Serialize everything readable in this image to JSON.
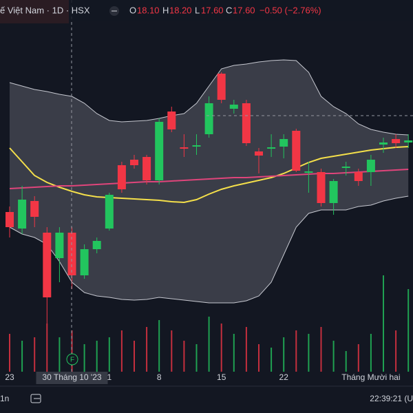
{
  "header": {
    "symbol": "ế Việt Nam · 1D · HSX",
    "o_label": "O",
    "o": "18.10",
    "h_label": "H",
    "h": "18.20",
    "l_label": "L",
    "l": "17.60",
    "c_label": "C",
    "c": "17.60",
    "change": "−0.50 (−2.76%)"
  },
  "footer": {
    "range": "1n",
    "clock": "22:39:21 (U",
    "event": "F"
  },
  "chart_data": {
    "type": "candlestick",
    "ylim": [
      14.6,
      20
    ],
    "vlim": [
      0,
      540
    ],
    "up_color": "#22c55e",
    "down_color": "#f23645",
    "highlighted_category": "30 Tháng 10 '23",
    "categories": [
      "23",
      null,
      null,
      null,
      null,
      "30 Tháng 10 '23",
      null,
      null,
      "1",
      null,
      null,
      null,
      "8",
      null,
      null,
      null,
      null,
      "15",
      null,
      null,
      null,
      null,
      "22",
      null,
      null,
      null,
      null,
      null,
      null,
      "Tháng Mười hai",
      null,
      null,
      null
    ],
    "open": [
      16.92,
      16.68,
      17.08,
      16.62,
      16.25,
      16.62,
      16.0,
      16.38,
      16.68,
      17.6,
      17.68,
      17.72,
      17.38,
      18.38,
      17.86,
      17.87,
      18.05,
      18.93,
      18.42,
      18.5,
      17.8,
      17.84,
      17.87,
      18.1,
      17.49,
      17.5,
      17.05,
      17.56,
      17.5,
      17.5,
      17.9,
      17.98,
      17.93
    ],
    "high": [
      17.0,
      17.3,
      17.15,
      16.7,
      16.7,
      16.7,
      16.45,
      16.55,
      17.2,
      17.65,
      17.75,
      17.75,
      18.28,
      18.45,
      18.05,
      18.05,
      18.6,
      18.95,
      18.55,
      18.55,
      17.85,
      18.05,
      18.05,
      18.13,
      17.65,
      17.55,
      17.4,
      17.65,
      17.55,
      17.75,
      18.0,
      18.05,
      18.05
    ],
    "low": [
      16.55,
      16.6,
      16.7,
      15.3,
      15.9,
      15.8,
      15.95,
      16.32,
      16.65,
      17.2,
      17.55,
      17.32,
      17.32,
      18.08,
      17.72,
      17.75,
      18.0,
      18.5,
      18.35,
      17.88,
      17.48,
      17.72,
      17.7,
      17.5,
      17.2,
      17.0,
      16.88,
      17.45,
      17.3,
      17.3,
      17.78,
      17.85,
      17.85
    ],
    "close": [
      16.7,
      17.1,
      16.85,
      15.68,
      16.62,
      16.0,
      16.38,
      16.5,
      17.17,
      17.25,
      17.6,
      17.38,
      18.23,
      18.12,
      17.84,
      17.89,
      18.5,
      18.55,
      18.48,
      17.92,
      17.74,
      17.86,
      17.98,
      17.52,
      17.51,
      17.05,
      17.37,
      17.58,
      17.37,
      17.68,
      17.93,
      17.92,
      17.96
    ],
    "volume": [
      55,
      45,
      50,
      70,
      50,
      60,
      40,
      45,
      50,
      60,
      45,
      65,
      75,
      60,
      45,
      40,
      80,
      70,
      55,
      65,
      40,
      35,
      50,
      60,
      55,
      65,
      45,
      30,
      40,
      55,
      140,
      60,
      120
    ],
    "band": {
      "color": "#c7c9d1",
      "upper": [
        18.8,
        18.75,
        18.7,
        18.67,
        18.63,
        18.6,
        18.5,
        18.35,
        18.25,
        18.23,
        18.24,
        18.25,
        18.28,
        18.32,
        18.35,
        18.5,
        18.75,
        19.0,
        19.05,
        19.07,
        19.1,
        19.12,
        19.13,
        19.12,
        18.95,
        18.6,
        18.45,
        18.35,
        18.2,
        18.12,
        18.08,
        18.05,
        18.04
      ],
      "lower": [
        16.7,
        16.6,
        16.55,
        16.45,
        16.2,
        15.9,
        15.75,
        15.7,
        15.68,
        15.65,
        15.64,
        15.65,
        15.68,
        15.66,
        15.64,
        15.62,
        15.6,
        15.6,
        15.6,
        15.63,
        15.7,
        15.9,
        16.3,
        16.7,
        16.9,
        16.95,
        16.95,
        16.95,
        17.0,
        17.02,
        17.08,
        17.12,
        17.15
      ]
    },
    "series": [
      {
        "color": "#f5e04a",
        "values": [
          17.85,
          17.65,
          17.45,
          17.35,
          17.28,
          17.22,
          17.17,
          17.14,
          17.13,
          17.12,
          17.11,
          17.1,
          17.09,
          17.07,
          17.06,
          17.1,
          17.18,
          17.25,
          17.3,
          17.34,
          17.38,
          17.42,
          17.48,
          17.56,
          17.64,
          17.7,
          17.73,
          17.76,
          17.79,
          17.82,
          17.84,
          17.86,
          17.87
        ]
      },
      {
        "color": "#e0457b",
        "values": [
          17.26,
          17.27,
          17.28,
          17.29,
          17.3,
          17.3,
          17.31,
          17.32,
          17.33,
          17.34,
          17.35,
          17.36,
          17.36,
          17.37,
          17.38,
          17.39,
          17.4,
          17.41,
          17.42,
          17.42,
          17.43,
          17.44,
          17.45,
          17.46,
          17.47,
          17.48,
          17.48,
          17.49,
          17.5,
          17.51,
          17.52,
          17.53,
          17.54
        ]
      }
    ]
  }
}
